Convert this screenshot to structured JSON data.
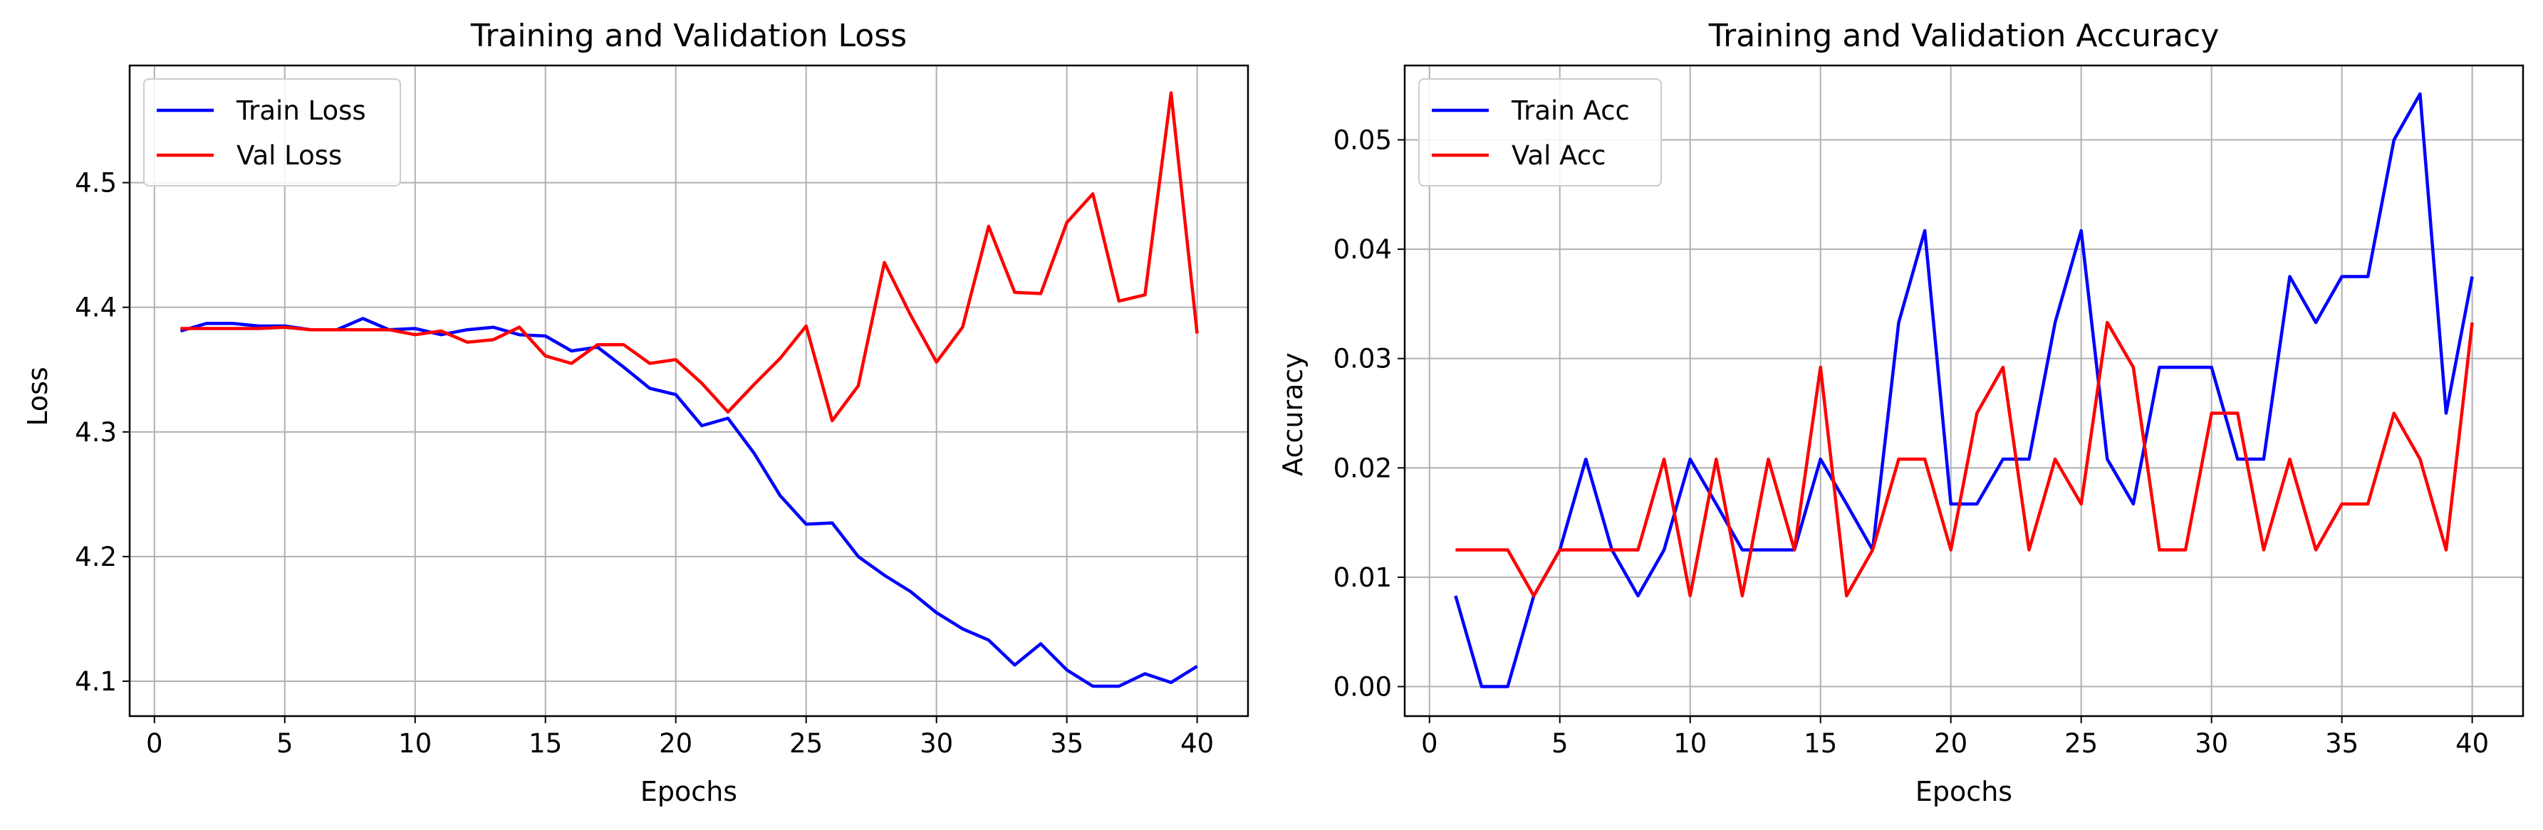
{
  "chart_data": [
    {
      "type": "line",
      "title": "Training and Validation Loss",
      "xlabel": "Epochs",
      "ylabel": "Loss",
      "xlim": [
        -0.95,
        41.95
      ],
      "ylim": [
        4.072,
        4.594
      ],
      "xticks": [
        0,
        5,
        10,
        15,
        20,
        25,
        30,
        35,
        40
      ],
      "yticks": [
        4.1,
        4.2,
        4.3,
        4.4,
        4.5
      ],
      "xtick_labels": [
        "0",
        "5",
        "10",
        "15",
        "20",
        "25",
        "30",
        "35",
        "40"
      ],
      "ytick_labels": [
        "4.1",
        "4.2",
        "4.3",
        "4.4",
        "4.5"
      ],
      "grid": true,
      "legend_position": "upper-left",
      "x": [
        1,
        2,
        3,
        4,
        5,
        6,
        7,
        8,
        9,
        10,
        11,
        12,
        13,
        14,
        15,
        16,
        17,
        18,
        19,
        20,
        21,
        22,
        23,
        24,
        25,
        26,
        27,
        28,
        29,
        30,
        31,
        32,
        33,
        34,
        35,
        36,
        37,
        38,
        39,
        40
      ],
      "series": [
        {
          "name": "Train Loss",
          "color": "#0000ff",
          "values": [
            4.381,
            4.387,
            4.387,
            4.385,
            4.385,
            4.382,
            4.382,
            4.391,
            4.382,
            4.383,
            4.378,
            4.382,
            4.384,
            4.378,
            4.377,
            4.365,
            4.368,
            4.352,
            4.335,
            4.33,
            4.305,
            4.311,
            4.283,
            4.249,
            4.226,
            4.227,
            4.2,
            4.185,
            4.172,
            4.155,
            4.142,
            4.133,
            4.113,
            4.13,
            4.109,
            4.096,
            4.096,
            4.106,
            4.099,
            4.112
          ]
        },
        {
          "name": "Val Loss",
          "color": "#ff0000",
          "values": [
            4.383,
            4.383,
            4.383,
            4.383,
            4.384,
            4.382,
            4.382,
            4.382,
            4.382,
            4.378,
            4.381,
            4.372,
            4.374,
            4.384,
            4.361,
            4.355,
            4.37,
            4.37,
            4.355,
            4.358,
            4.339,
            4.316,
            4.338,
            4.359,
            4.385,
            4.309,
            4.337,
            4.436,
            4.394,
            4.356,
            4.384,
            4.465,
            4.412,
            4.411,
            4.468,
            4.491,
            4.405,
            4.41,
            4.572,
            4.379
          ]
        }
      ]
    },
    {
      "type": "line",
      "title": "Training and Validation Accuracy",
      "xlabel": "Epochs",
      "ylabel": "Accuracy",
      "xlim": [
        -0.95,
        41.95
      ],
      "ylim": [
        -0.0027,
        0.0568
      ],
      "xticks": [
        0,
        5,
        10,
        15,
        20,
        25,
        30,
        35,
        40
      ],
      "yticks": [
        0.0,
        0.01,
        0.02,
        0.03,
        0.04,
        0.05
      ],
      "xtick_labels": [
        "0",
        "5",
        "10",
        "15",
        "20",
        "25",
        "30",
        "35",
        "40"
      ],
      "ytick_labels": [
        "0.00",
        "0.01",
        "0.02",
        "0.03",
        "0.04",
        "0.05"
      ],
      "grid": true,
      "legend_position": "upper-left",
      "x": [
        1,
        2,
        3,
        4,
        5,
        6,
        7,
        8,
        9,
        10,
        11,
        12,
        13,
        14,
        15,
        16,
        17,
        18,
        19,
        20,
        21,
        22,
        23,
        24,
        25,
        26,
        27,
        28,
        29,
        30,
        31,
        32,
        33,
        34,
        35,
        36,
        37,
        38,
        39,
        40
      ],
      "series": [
        {
          "name": "Train Acc",
          "color": "#0000ff",
          "values": [
            0.0083,
            0.0,
            0.0,
            0.0083,
            0.0125,
            0.0208,
            0.0125,
            0.0083,
            0.0125,
            0.0208,
            0.0167,
            0.0125,
            0.0125,
            0.0125,
            0.0208,
            0.0167,
            0.0125,
            0.0333,
            0.0417,
            0.0167,
            0.0167,
            0.0208,
            0.0208,
            0.0333,
            0.0417,
            0.0208,
            0.0167,
            0.0292,
            0.0292,
            0.0292,
            0.0208,
            0.0208,
            0.0375,
            0.0333,
            0.0375,
            0.0375,
            0.05,
            0.0542,
            0.025,
            0.0375
          ]
        },
        {
          "name": "Val Acc",
          "color": "#ff0000",
          "values": [
            0.0125,
            0.0125,
            0.0125,
            0.0083,
            0.0125,
            0.0125,
            0.0125,
            0.0125,
            0.0208,
            0.0083,
            0.0208,
            0.0083,
            0.0208,
            0.0125,
            0.0292,
            0.0083,
            0.0125,
            0.0208,
            0.0208,
            0.0125,
            0.025,
            0.0292,
            0.0125,
            0.0208,
            0.0167,
            0.0333,
            0.0292,
            0.0125,
            0.0125,
            0.025,
            0.025,
            0.0125,
            0.0208,
            0.0125,
            0.0167,
            0.0167,
            0.025,
            0.0208,
            0.0125,
            0.0333
          ]
        }
      ]
    }
  ]
}
